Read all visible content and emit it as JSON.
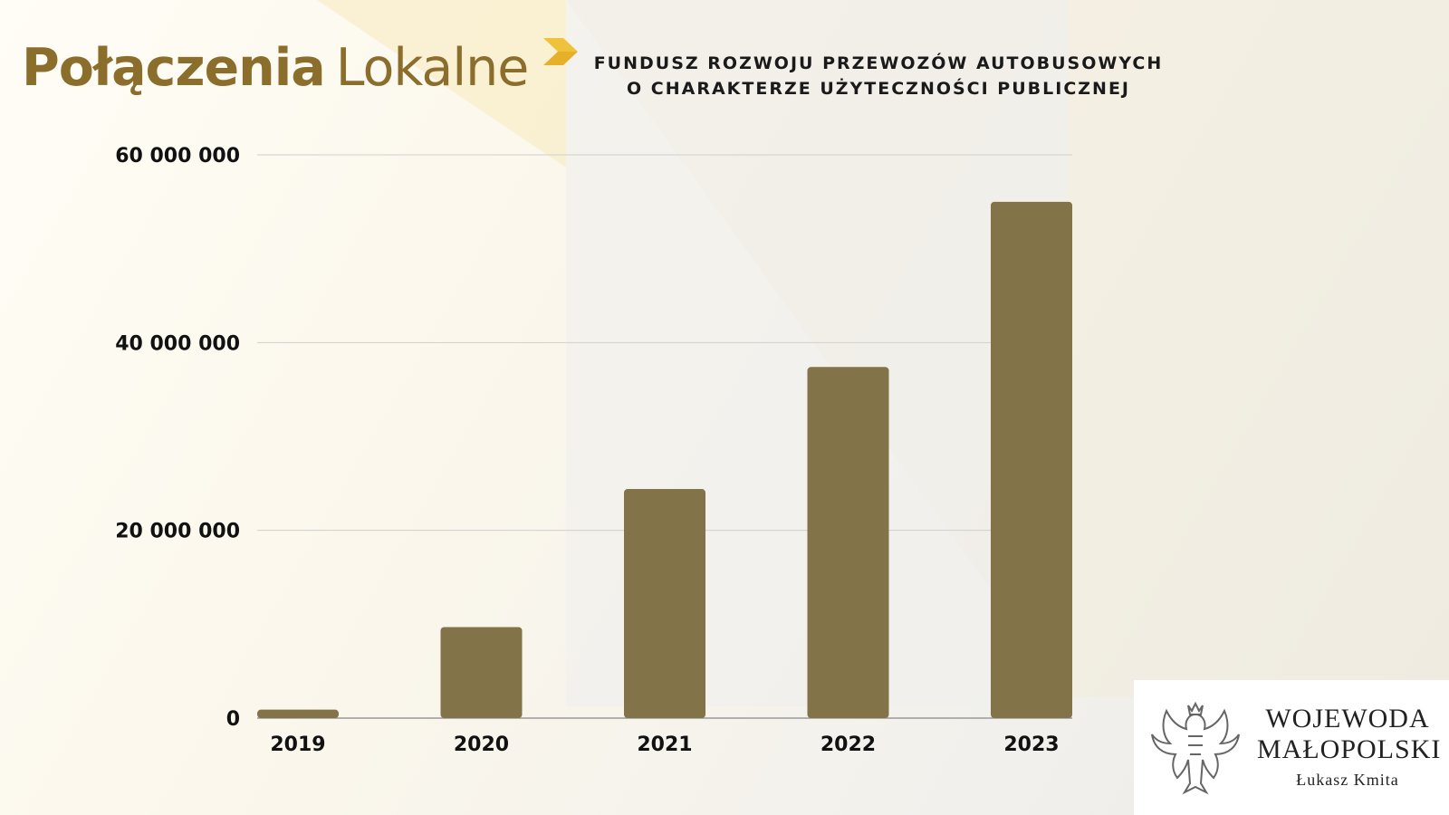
{
  "brand": {
    "logo_bold": "Połączenia",
    "logo_light": "Lokalne",
    "colors": {
      "brand": "#8c6e2c",
      "accent": "#f0c23c",
      "bar": "#837349"
    }
  },
  "headline": {
    "line1": "FUNDUSZ ROZWOJU PRZEWOZÓW AUTOBUSOWYCH",
    "line2": "O CHARAKTERZE UŻYTECZNOŚCI PUBLICZNEJ"
  },
  "chart_data": {
    "type": "bar",
    "title": "",
    "xlabel": "",
    "ylabel": "",
    "categories": [
      "2019",
      "2020",
      "2021",
      "2022",
      "2023"
    ],
    "values": [
      900000,
      9700000,
      24400000,
      37400000,
      55000000
    ],
    "ylim": [
      0,
      60000000
    ],
    "y_ticks": [
      0,
      20000000,
      40000000,
      60000000
    ],
    "y_tick_labels": [
      "0",
      "20 000 000",
      "40 000 000",
      "60 000 000"
    ],
    "grid": true,
    "legend": "none",
    "bar_color": "#837349"
  },
  "footer": {
    "emblem_icon": "polish-eagle-emblem",
    "title_line1": "WOJEWODA",
    "title_line2": "MAŁOPOLSKI",
    "name": "Łukasz Kmita"
  }
}
